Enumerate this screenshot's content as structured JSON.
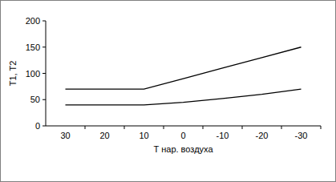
{
  "chart_data": {
    "type": "line",
    "x_label": "Т нар. воздуха",
    "y_label": "T1, T2",
    "categories": [
      "30",
      "20",
      "10",
      "0",
      "-10",
      "-20",
      "-30"
    ],
    "series": [
      {
        "color": "#000000",
        "values": [
          70,
          70,
          70,
          90,
          110,
          130,
          150
        ]
      },
      {
        "color": "#000000",
        "values": [
          40,
          40,
          40,
          45,
          52,
          60,
          70
        ]
      }
    ],
    "ylim": [
      0,
      200
    ],
    "yticks": [
      0,
      50,
      100,
      150,
      200
    ],
    "grid": false
  }
}
